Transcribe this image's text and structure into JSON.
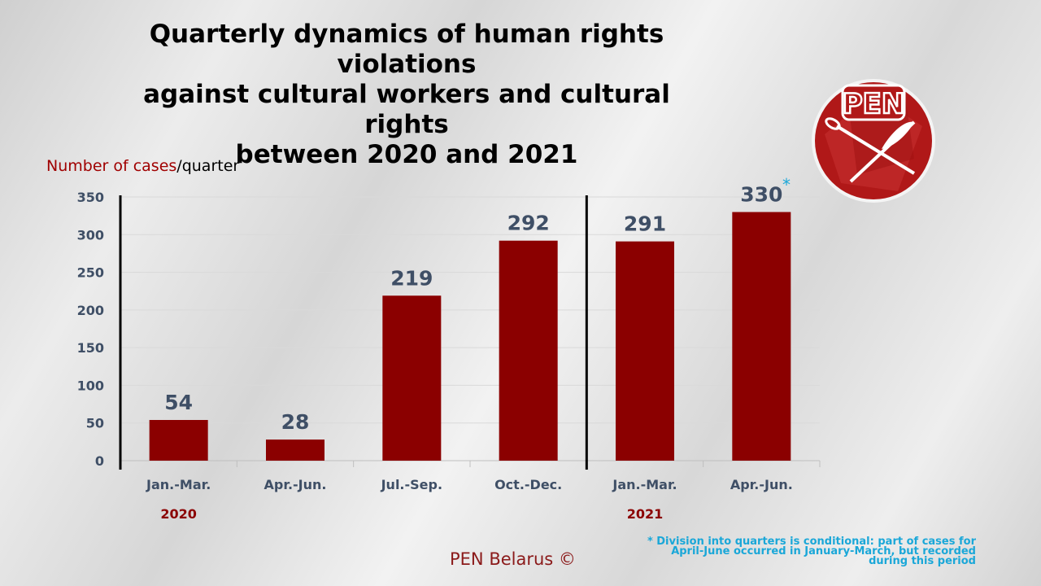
{
  "title_lines": [
    "Quarterly dynamics of human rights violations",
    "against cultural workers and cultural rights",
    "between 2020 and 2021"
  ],
  "ylabel": {
    "red_part": "Number of cases",
    "rest": "/quarter"
  },
  "footer": "PEN Belarus ©",
  "note_lines": [
    "* Division into quarters is conditional: part of cases for",
    "April-June occurred in January-March, but recorded",
    "during this period"
  ],
  "asterisk": "*",
  "logo_text": "PEN",
  "colors": {
    "bar": "#8b0000",
    "value_label": "#3f4f66",
    "year": "#8b0000",
    "note": "#1aa7d8"
  },
  "chart_data": {
    "type": "bar",
    "categories": [
      "Jan.-Mar.",
      "Apr.-Jun.",
      "Jul.-Sep.",
      "Oct.-Dec.",
      "Jan.-Mar.",
      "Apr.-Jun."
    ],
    "groups": [
      {
        "label": "2020",
        "categories": [
          "Jan.-Mar.",
          "Apr.-Jun.",
          "Jul.-Sep.",
          "Oct.-Dec."
        ]
      },
      {
        "label": "2021",
        "categories": [
          "Jan.-Mar.",
          "Apr.-Jun."
        ]
      }
    ],
    "values": [
      54,
      28,
      219,
      292,
      291,
      330
    ],
    "ylim": [
      0,
      350
    ],
    "yticks": [
      0,
      50,
      100,
      150,
      200,
      250,
      300,
      350
    ],
    "grid": true
  }
}
